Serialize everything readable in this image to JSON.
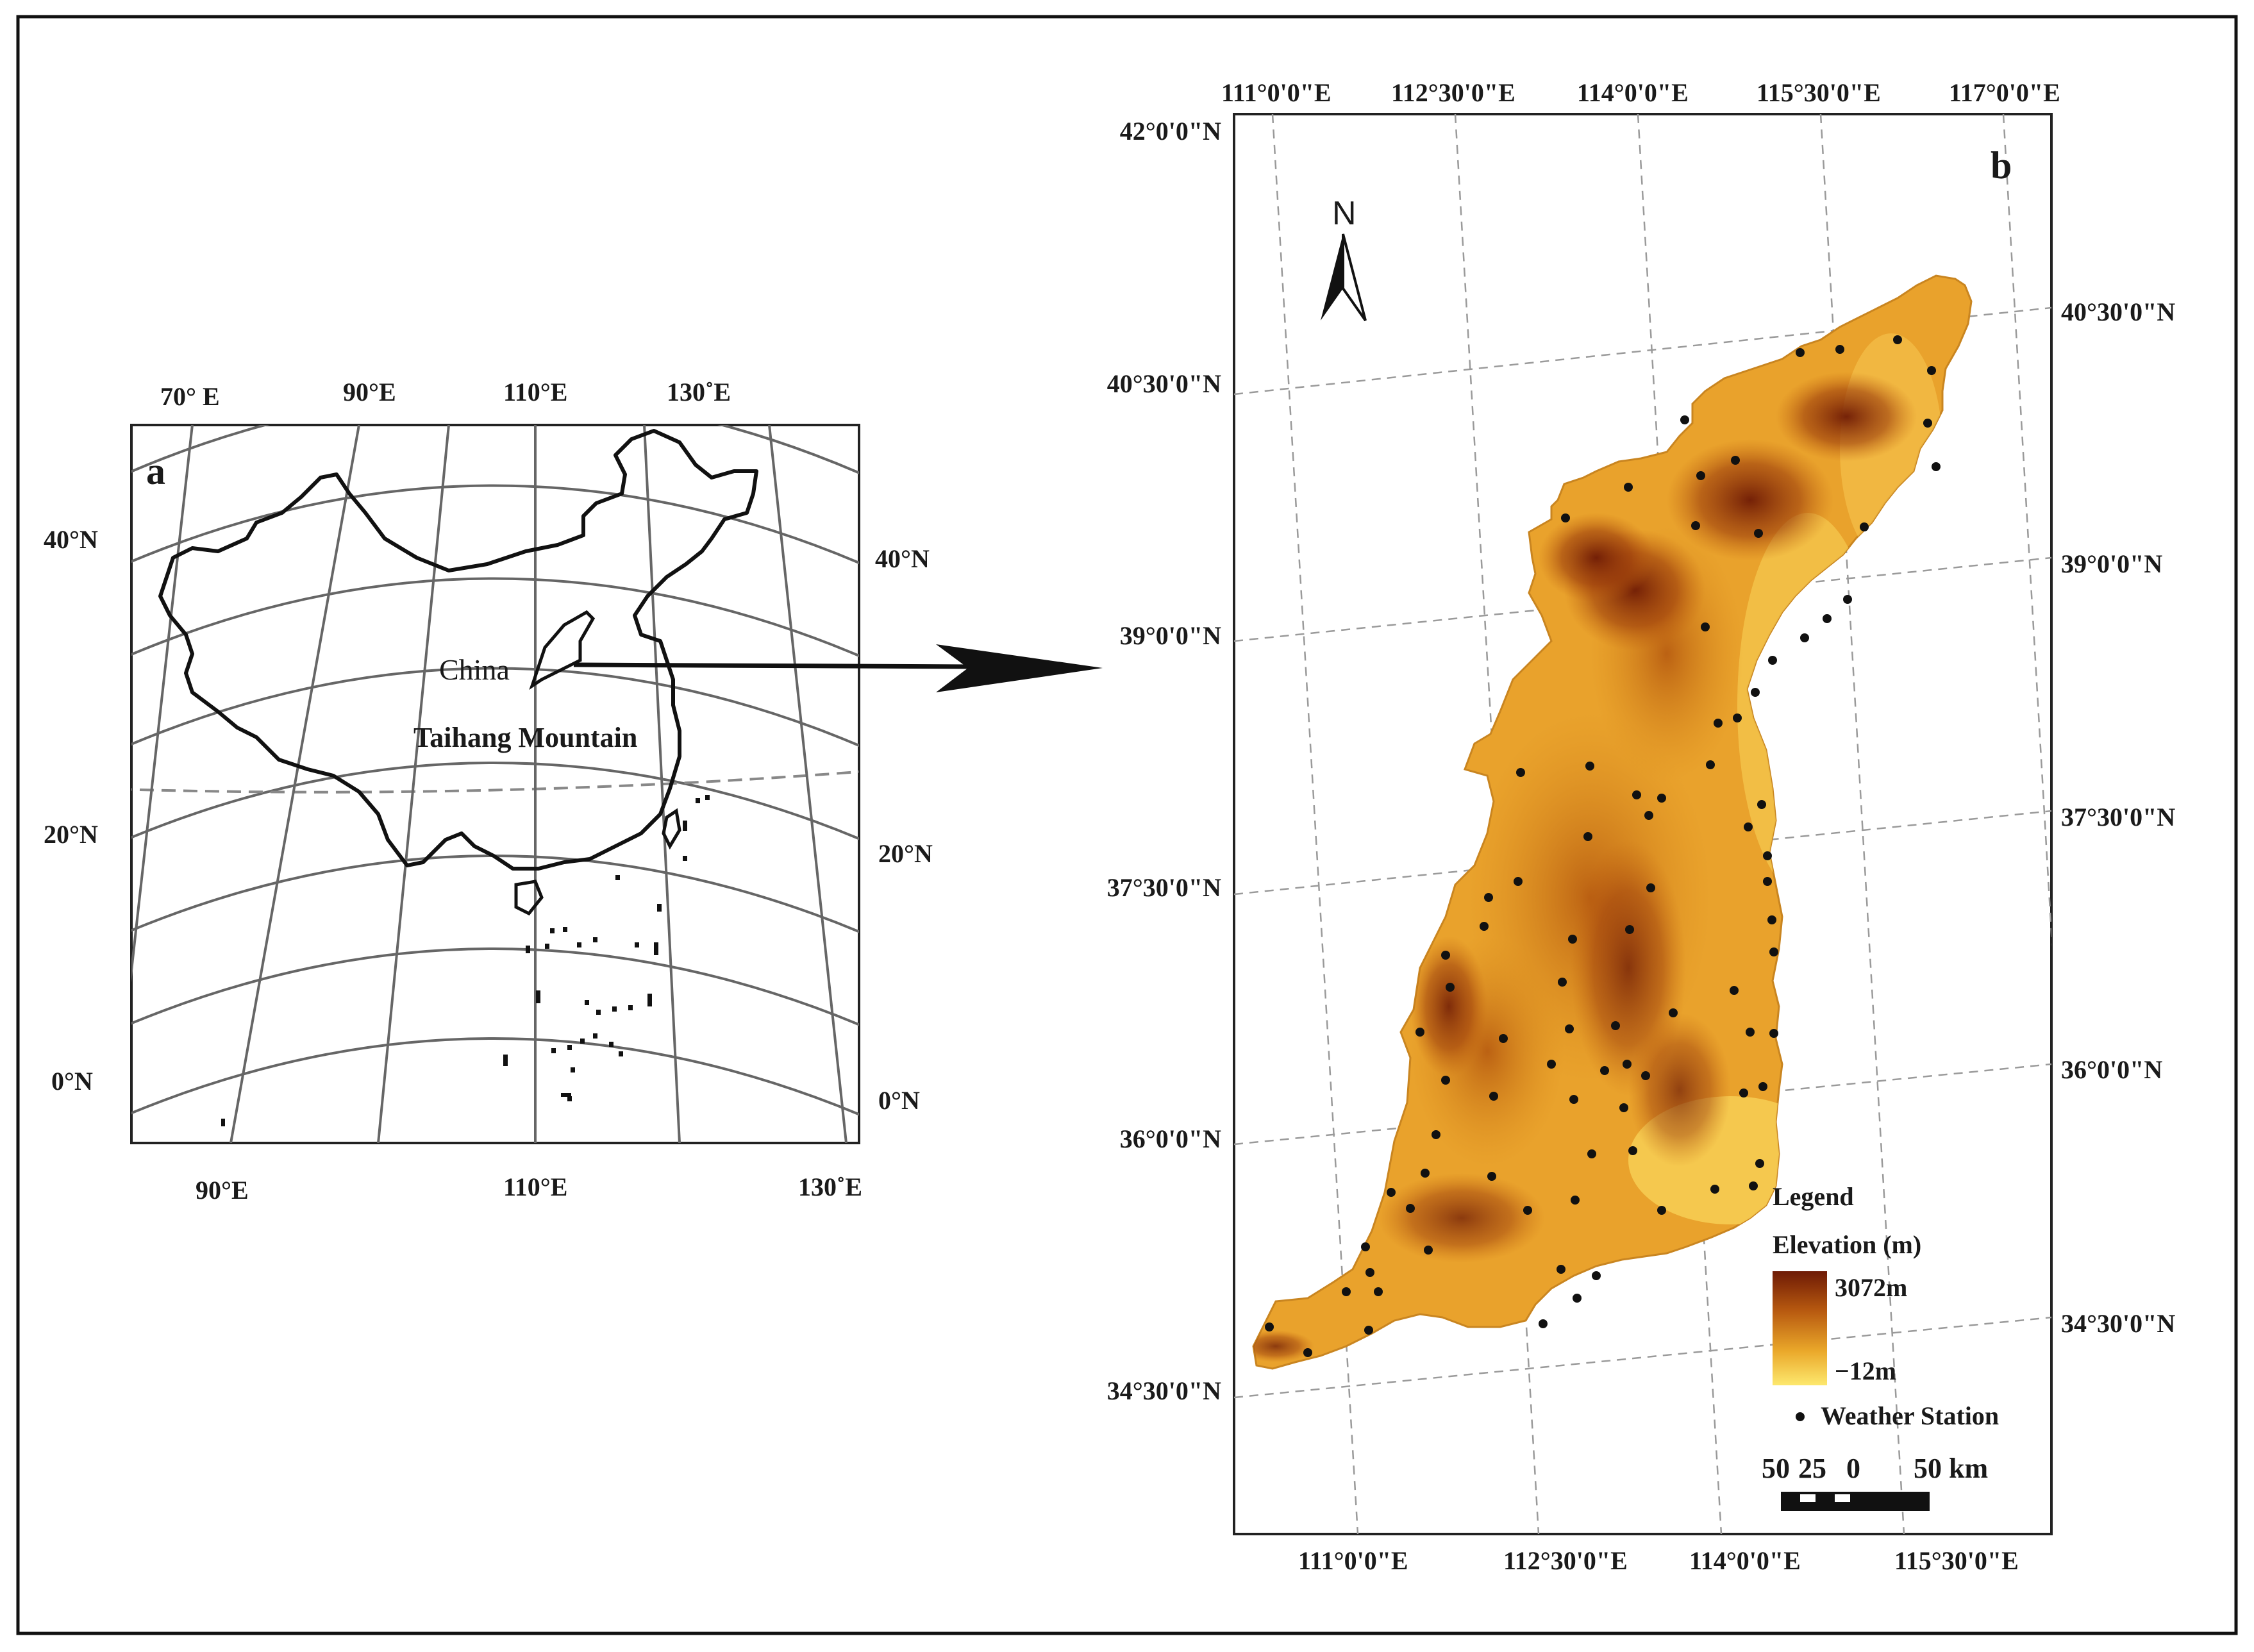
{
  "panel_a": {
    "letter": "a",
    "top_lon_labels": [
      "70° E",
      "90°E",
      "110°E",
      "130˚E"
    ],
    "bottom_lon_labels": [
      "90°E",
      "110°E",
      "130˚E"
    ],
    "left_lat_labels": [
      "40°N",
      "20°N",
      "0°N"
    ],
    "right_lat_labels": [
      "40°N",
      "20°N",
      "0°N"
    ],
    "country_label": "China",
    "region_label": "Taihang Mountain"
  },
  "panel_b": {
    "letter": "b",
    "north_label": "N",
    "top_lon_labels": [
      "111°0'0\"E",
      "112°30'0\"E",
      "114°0'0\"E",
      "115°30'0\"E",
      "117°0'0\"E"
    ],
    "bottom_lon_labels": [
      "111°0'0\"E",
      "112°30'0\"E",
      "114°0'0\"E",
      "115°30'0\"E"
    ],
    "left_lat_labels": [
      "42°0'0\"N",
      "40°30'0\"N",
      "39°0'0\"N",
      "37°30'0\"N",
      "36°0'0\"N",
      "34°30'0\"N"
    ],
    "right_lat_labels": [
      "40°30'0\"N",
      "39°0'0\"N",
      "37°30'0\"N",
      "36°0'0\"N",
      "34°30'0\"N"
    ],
    "legend": {
      "title": "Legend",
      "elevation_title": "Elevation (m)",
      "elevation_max": "3072m",
      "elevation_min": "−12m",
      "station_label": "Weather Station"
    },
    "scale_bar": {
      "labels": [
        "50",
        "25",
        "0",
        "50 km"
      ]
    },
    "colors": {
      "elev_high": "#7a1e06",
      "elev_mid": "#c46a12",
      "elev_low": "#fde26a"
    }
  }
}
